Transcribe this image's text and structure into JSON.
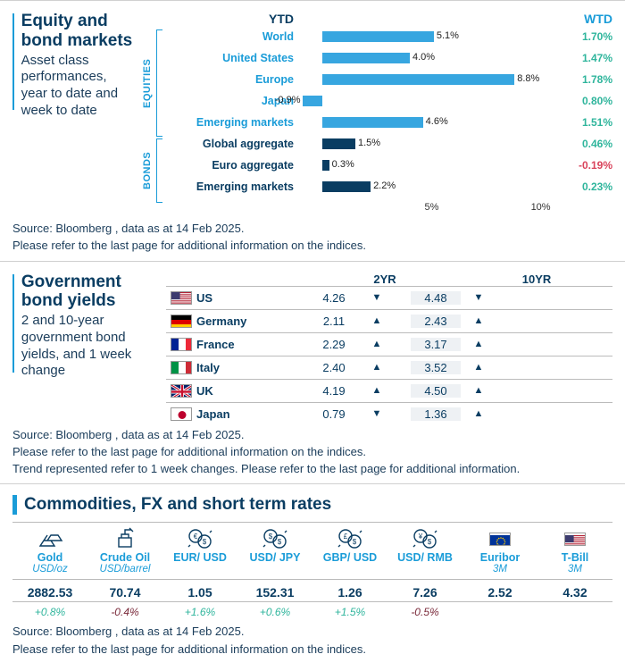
{
  "colors": {
    "accent": "#1a9cd8",
    "navy": "#0a3d62",
    "equity_bar": "#37a6e0",
    "bond_bar": "#0a3d62",
    "pos": "#2fb59c",
    "neg": "#d9445c",
    "border": "#bbbbbb",
    "shade": "#eef1f4"
  },
  "section1": {
    "title": "Equity and bond markets",
    "subtitle": "Asset class performances, year to date and week to date",
    "headers": {
      "ytd": "YTD",
      "wtd": "WTD"
    },
    "groups": [
      {
        "label": "EQUITIES",
        "bar_color": "#37a6e0",
        "name_color": "#1a9cd8",
        "rows": [
          {
            "name": "World",
            "ytd": 5.1,
            "ytd_label": "5.1%",
            "wtd": "1.70%",
            "wtd_sign": "pos"
          },
          {
            "name": "United States",
            "ytd": 4.0,
            "ytd_label": "4.0%",
            "wtd": "1.47%",
            "wtd_sign": "pos"
          },
          {
            "name": "Europe",
            "ytd": 8.8,
            "ytd_label": "8.8%",
            "wtd": "1.78%",
            "wtd_sign": "pos"
          },
          {
            "name": "Japan",
            "ytd": -0.9,
            "ytd_label": "-0.9%",
            "wtd": "0.80%",
            "wtd_sign": "pos"
          },
          {
            "name": "Emerging markets",
            "ytd": 4.6,
            "ytd_label": "4.6%",
            "wtd": "1.51%",
            "wtd_sign": "pos"
          }
        ]
      },
      {
        "label": "BONDS",
        "bar_color": "#0a3d62",
        "name_color": "#0a3d62",
        "rows": [
          {
            "name": "Global aggregate",
            "ytd": 1.5,
            "ytd_label": "1.5%",
            "wtd": "0.46%",
            "wtd_sign": "pos"
          },
          {
            "name": "Euro aggregate",
            "ytd": 0.3,
            "ytd_label": "0.3%",
            "wtd": "-0.19%",
            "wtd_sign": "neg"
          },
          {
            "name": "Emerging markets",
            "ytd": 2.2,
            "ytd_label": "2.2%",
            "wtd": "0.23%",
            "wtd_sign": "pos"
          }
        ]
      }
    ],
    "axis": {
      "min": -1,
      "max": 11,
      "ticks": [
        5,
        10
      ],
      "tick_labels": [
        "5%",
        "10%"
      ]
    },
    "source": "Source: Bloomberg , data as at 14 Feb 2025.",
    "note": "Please refer to the last page for additional information on the indices."
  },
  "section2": {
    "title": "Government bond yields",
    "subtitle": "2 and 10-year government bond yields, and 1 week change",
    "headers": {
      "c2": "2YR",
      "c3": "10YR"
    },
    "rows": [
      {
        "country": "US",
        "flag": "us",
        "y2": "4.26",
        "t2": "down",
        "y10": "4.48",
        "t10": "down"
      },
      {
        "country": "Germany",
        "flag": "de",
        "y2": "2.11",
        "t2": "up",
        "y10": "2.43",
        "t10": "up"
      },
      {
        "country": "France",
        "flag": "fr",
        "y2": "2.29",
        "t2": "up",
        "y10": "3.17",
        "t10": "up"
      },
      {
        "country": "Italy",
        "flag": "it",
        "y2": "2.40",
        "t2": "up",
        "y10": "3.52",
        "t10": "up"
      },
      {
        "country": "UK",
        "flag": "gb",
        "y2": "4.19",
        "t2": "up",
        "y10": "4.50",
        "t10": "up"
      },
      {
        "country": "Japan",
        "flag": "jp",
        "y2": "0.79",
        "t2": "down",
        "y10": "1.36",
        "t10": "up"
      }
    ],
    "source": "Source: Bloomberg , data as at 14 Feb 2025.",
    "note1": "Please refer to the last page for additional information on the indices.",
    "note2": "Trend represented refer to 1 week changes. Please refer to the last page for additional information."
  },
  "section3": {
    "title": "Commodities, FX and short term rates",
    "cols": [
      {
        "icon": "gold",
        "name": "Gold",
        "unit": "USD/oz",
        "value": "2882.53",
        "change": "+0.8%",
        "sign": "pos"
      },
      {
        "icon": "oil",
        "name": "Crude Oil",
        "unit": "USD/barrel",
        "value": "70.74",
        "change": "-0.4%",
        "sign": "neg"
      },
      {
        "icon": "eur",
        "name": "EUR/ USD",
        "unit": "",
        "value": "1.05",
        "change": "+1.6%",
        "sign": "pos"
      },
      {
        "icon": "usd",
        "name": "USD/ JPY",
        "unit": "",
        "value": "152.31",
        "change": "+0.6%",
        "sign": "pos"
      },
      {
        "icon": "gbp",
        "name": "GBP/ USD",
        "unit": "",
        "value": "1.26",
        "change": "+1.5%",
        "sign": "pos"
      },
      {
        "icon": "cny",
        "name": "USD/ RMB",
        "unit": "",
        "value": "7.26",
        "change": "-0.5%",
        "sign": "neg"
      },
      {
        "icon": "eu",
        "name": "Euribor",
        "unit": "3M",
        "value": "2.52",
        "change": "",
        "sign": ""
      },
      {
        "icon": "us",
        "name": "T-Bill",
        "unit": "3M",
        "value": "4.32",
        "change": "",
        "sign": ""
      }
    ],
    "source": "Source: Bloomberg , data as at 14 Feb 2025.",
    "note": "Please refer to the last page for additional information on the indices."
  }
}
